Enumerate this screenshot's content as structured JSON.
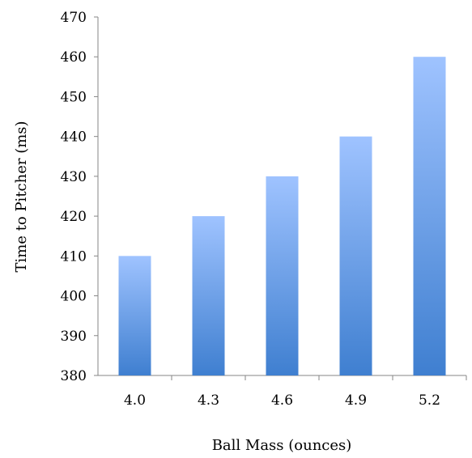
{
  "chart_data": {
    "type": "bar",
    "title": "",
    "xlabel": "Ball Mass (ounces)",
    "ylabel": "Time to Pitcher (ms)",
    "categories": [
      "4.0",
      "4.3",
      "4.6",
      "4.9",
      "5.2"
    ],
    "values": [
      410,
      420,
      430,
      440,
      460
    ],
    "ylim": [
      380,
      470
    ],
    "yticks": [
      380,
      390,
      400,
      410,
      420,
      430,
      440,
      450,
      460,
      470
    ],
    "grid": false,
    "legend": "none",
    "colors": {
      "bar_top": "#9fc3ff",
      "bar_bottom": "#3f7fd0",
      "axis": "#868686"
    }
  }
}
